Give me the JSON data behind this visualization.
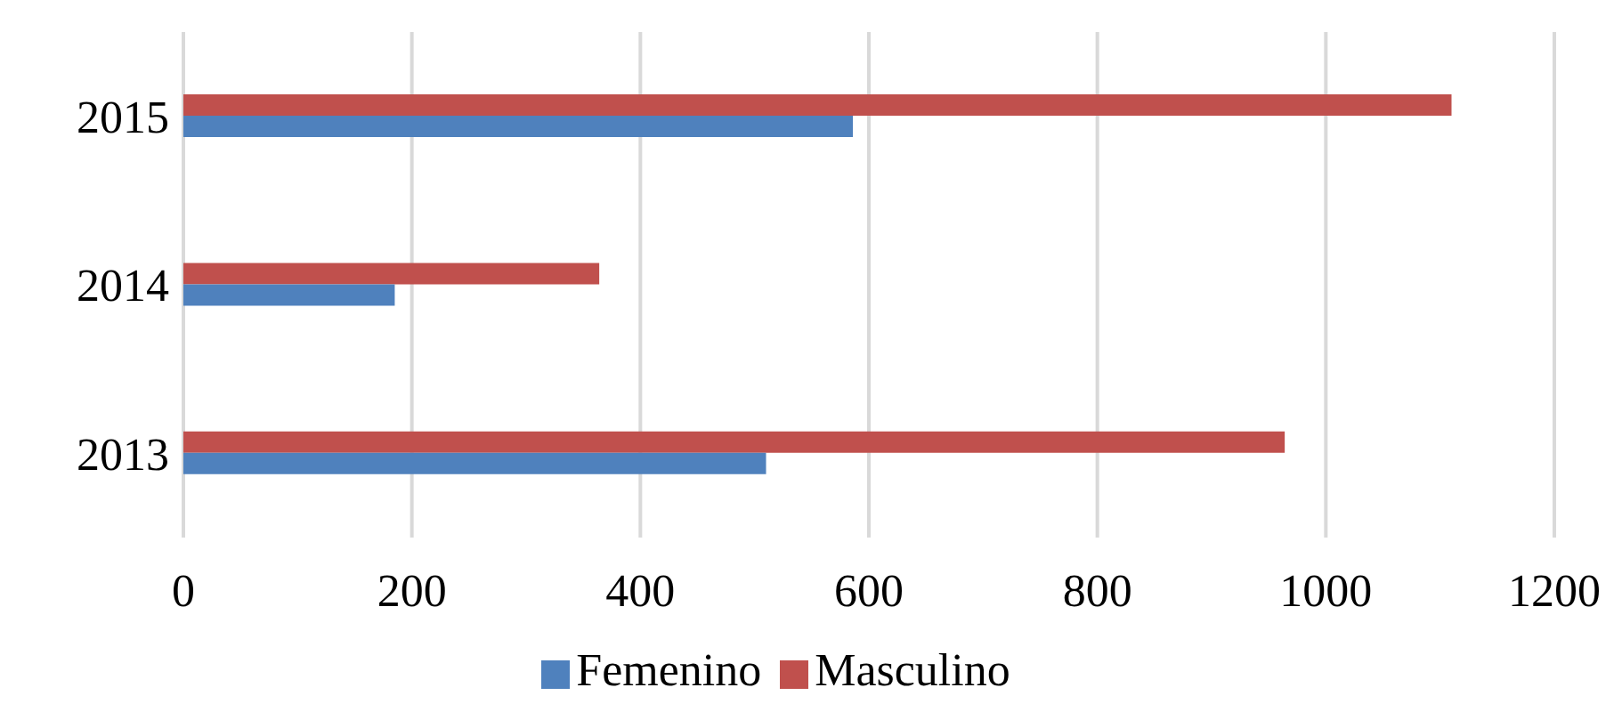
{
  "chart_data": {
    "type": "bar",
    "orientation": "horizontal",
    "categories": [
      "2015",
      "2014",
      "2013"
    ],
    "series": [
      {
        "name": "Masculino",
        "color": "#c0504d",
        "values": [
          1110,
          364,
          964
        ]
      },
      {
        "name": "Femenino",
        "color": "#4f81bd",
        "values": [
          586,
          185,
          510
        ]
      }
    ],
    "xlim": [
      0,
      1200
    ],
    "xticks": [
      0,
      200,
      400,
      600,
      800,
      1000,
      1200
    ],
    "grid": "x",
    "legend": "bottom"
  }
}
